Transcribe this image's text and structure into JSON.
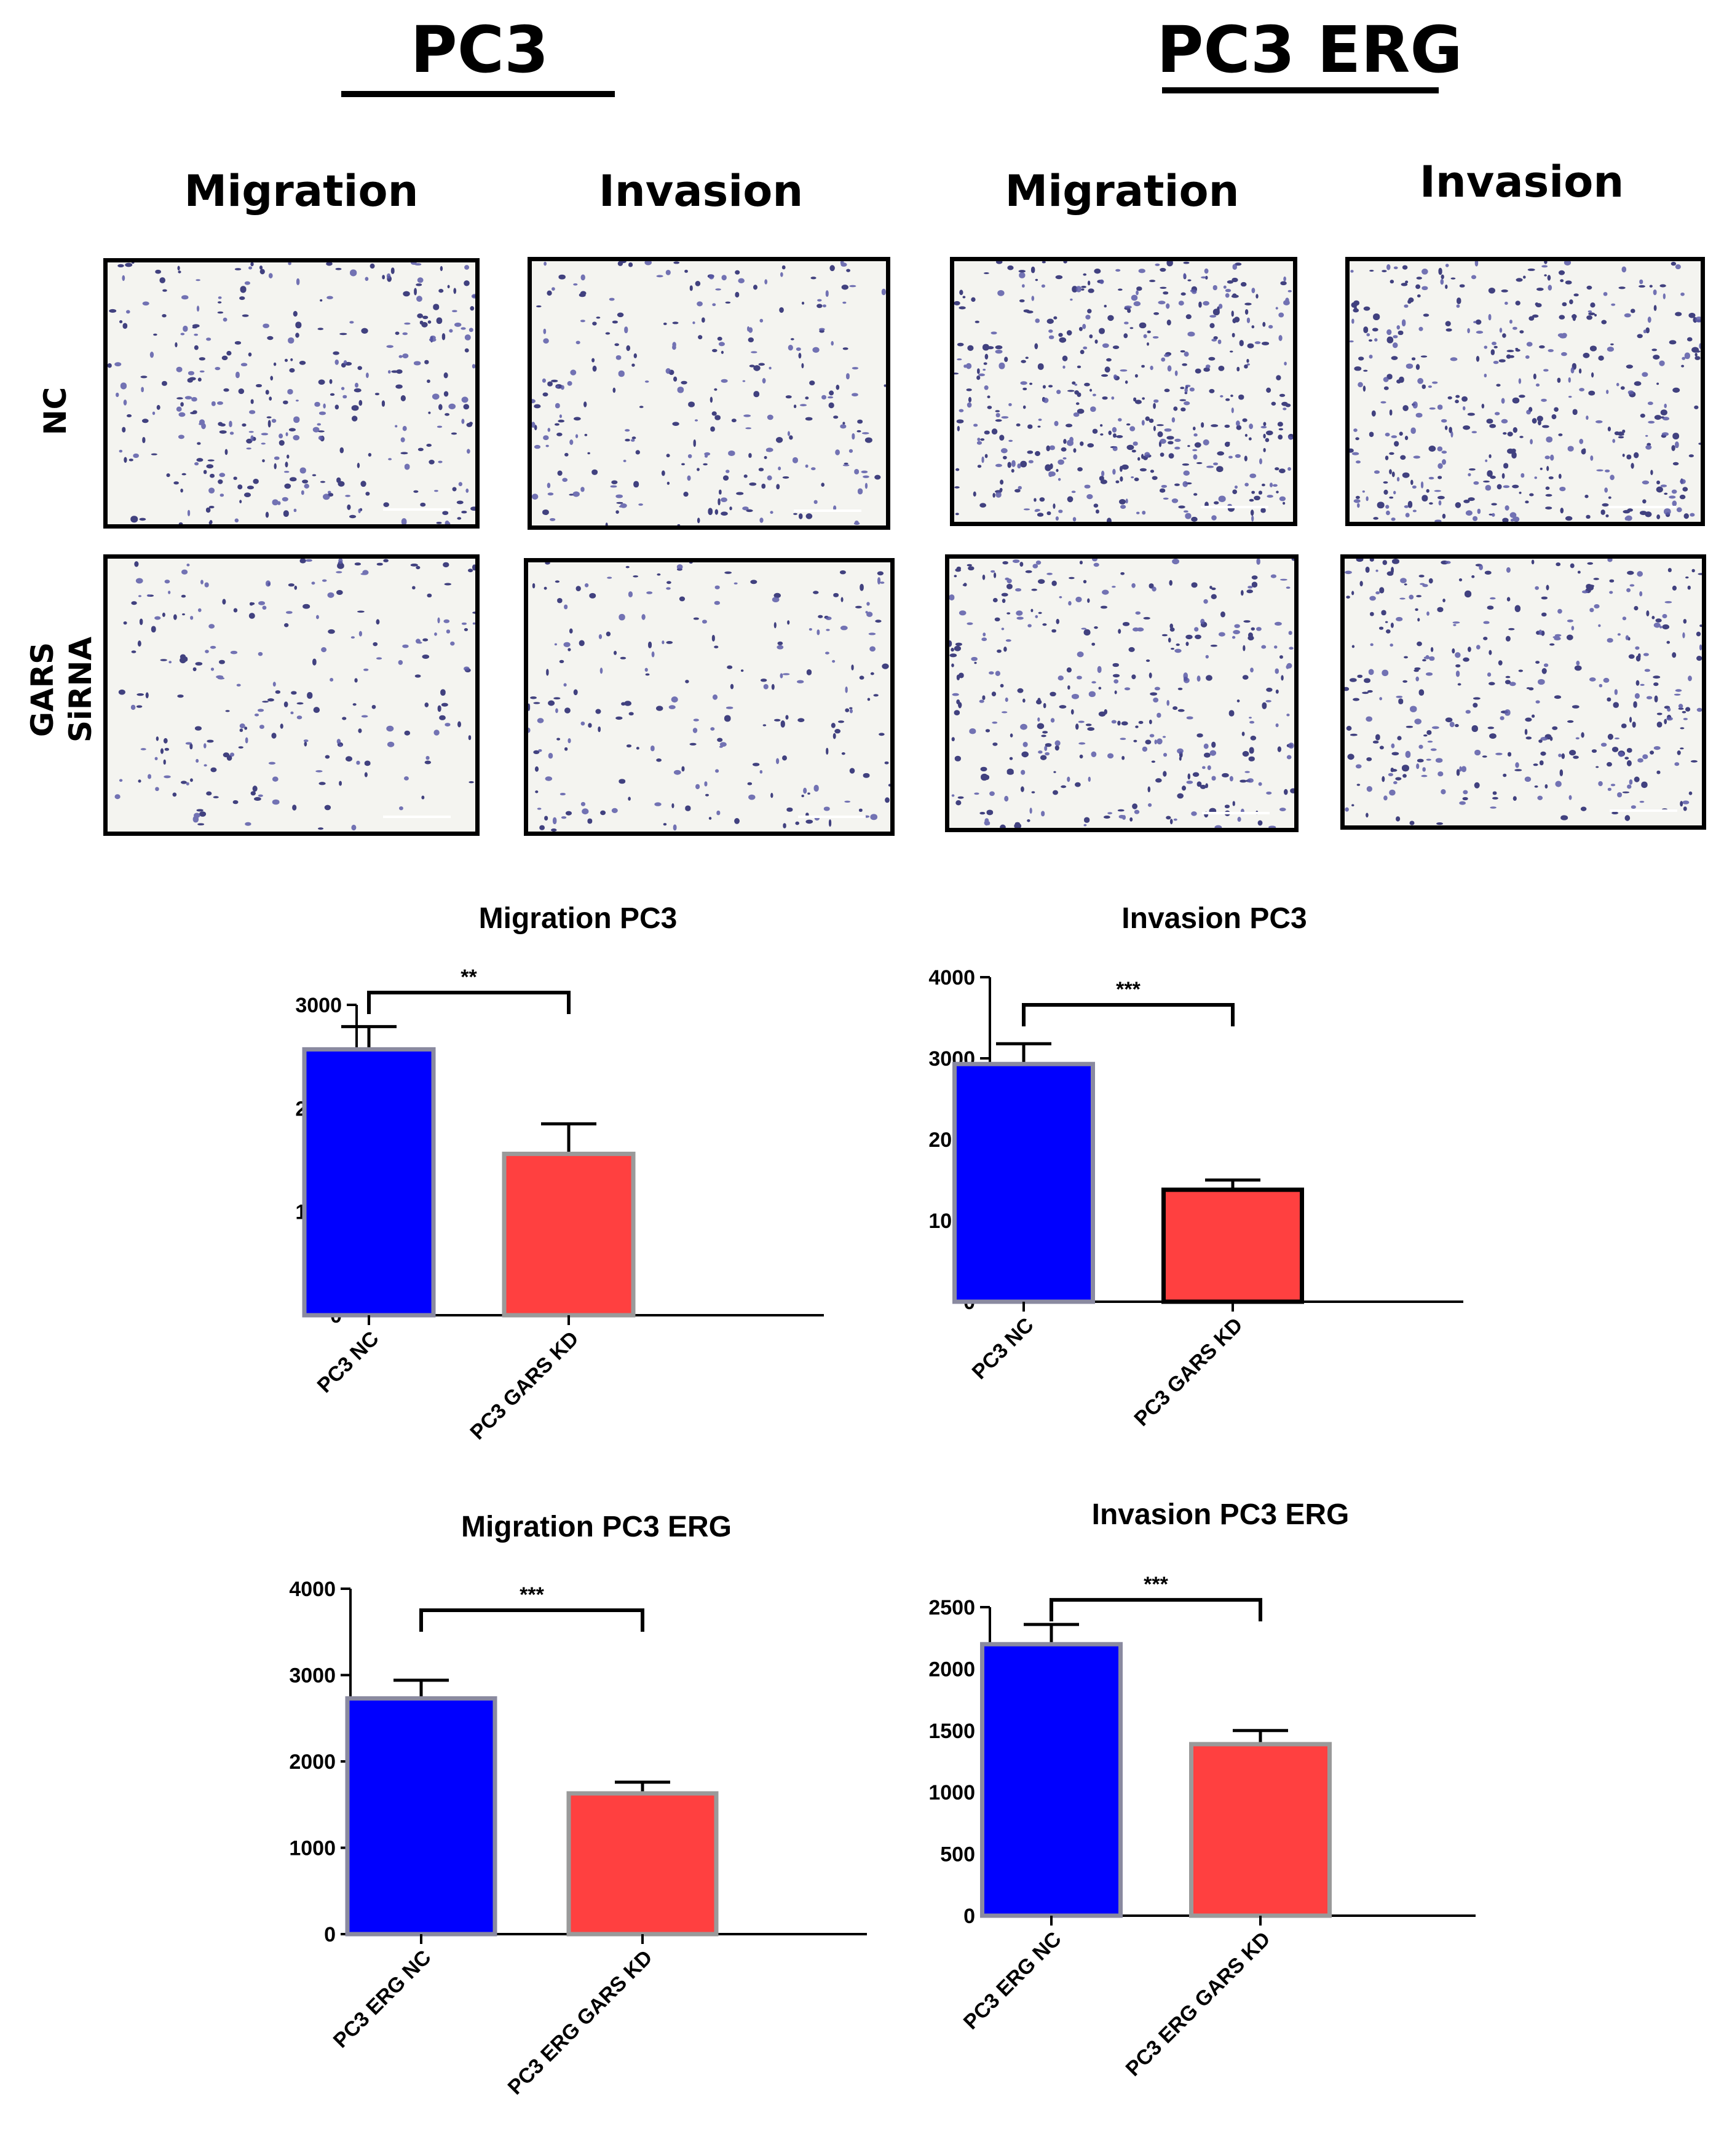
{
  "header": {
    "left_title": "PC3",
    "right_title": "PC3 ERG",
    "columns": [
      "Migration",
      "Invasion",
      "Migration",
      "Invasion"
    ],
    "rows": [
      [
        "NC"
      ],
      [
        "GARS",
        "SiRNA"
      ]
    ]
  },
  "colors": {
    "nc_bar": "#0000ff",
    "kd_bar": "#ff4040",
    "stain_dark": "#2e2e72",
    "stain_light": "#5a5aa8"
  },
  "micrographs": [
    {
      "name": "pc3-nc-migration",
      "seed": 11,
      "density": 0.55
    },
    {
      "name": "pc3-nc-invasion",
      "seed": 23,
      "density": 0.45
    },
    {
      "name": "pc3erg-nc-migration",
      "seed": 37,
      "density": 0.85
    },
    {
      "name": "pc3erg-nc-invasion",
      "seed": 41,
      "density": 0.75
    },
    {
      "name": "pc3-kd-migration",
      "seed": 53,
      "density": 0.35
    },
    {
      "name": "pc3-kd-invasion",
      "seed": 67,
      "density": 0.35
    },
    {
      "name": "pc3erg-kd-migration",
      "seed": 71,
      "density": 0.6
    },
    {
      "name": "pc3erg-kd-invasion",
      "seed": 83,
      "density": 0.6
    }
  ],
  "chart_data": [
    {
      "type": "bar",
      "title": "Migration PC3",
      "categories": [
        "PC3 NC",
        "PC3 GARS KD"
      ],
      "values": [
        2570,
        1560
      ],
      "errors": [
        220,
        290
      ],
      "ylim": [
        0,
        3000
      ],
      "yticks": [
        "0",
        "1000",
        "2000",
        "3000"
      ],
      "significance": "**",
      "grid": false
    },
    {
      "type": "bar",
      "title": "Invasion PC3",
      "categories": [
        "PC3 NC",
        "PC3 GARS KD"
      ],
      "values": [
        2930,
        1380
      ],
      "errors": [
        250,
        120
      ],
      "ylim": [
        0,
        4000
      ],
      "yticks": [
        "0",
        "1000",
        "2000",
        "3000",
        "4000"
      ],
      "significance": "***",
      "grid": false
    },
    {
      "type": "bar",
      "title": "Migration PC3 ERG",
      "categories": [
        "PC3 ERG NC",
        "PC3 ERG GARS KD"
      ],
      "values": [
        2730,
        1630
      ],
      "errors": [
        210,
        130
      ],
      "ylim": [
        0,
        4000
      ],
      "yticks": [
        "0",
        "1000",
        "2000",
        "3000",
        "4000"
      ],
      "significance": "***",
      "grid": false
    },
    {
      "type": "bar",
      "title": "Invasion PC3 ERG",
      "categories": [
        "PC3 ERG NC",
        "PC3 ERG GARS KD"
      ],
      "values": [
        2200,
        1390
      ],
      "errors": [
        160,
        110
      ],
      "ylim": [
        0,
        2500
      ],
      "yticks": [
        "0",
        "500",
        "1000",
        "1500",
        "2000",
        "2500"
      ],
      "significance": "***",
      "grid": false
    }
  ]
}
